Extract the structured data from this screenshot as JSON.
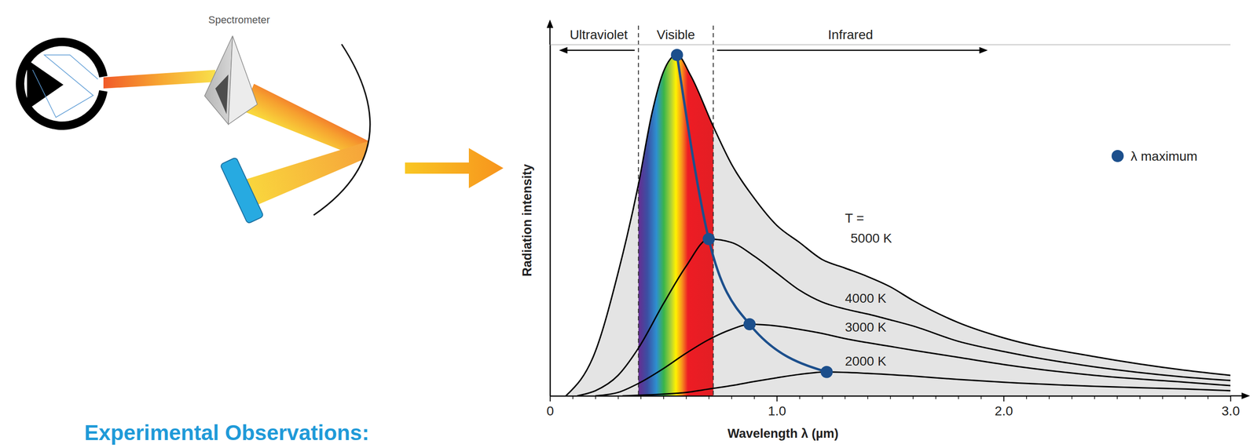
{
  "heading": "Experimental Observations:",
  "diagram": {
    "label": "Spectrometer"
  },
  "chart_data": {
    "type": "line",
    "xlabel": "Wavelength λ (µm)",
    "ylabel": "Radiation intensity",
    "xlim": [
      0,
      3
    ],
    "xticks": [
      0,
      {
        "value": 1,
        "label": "1.0"
      },
      {
        "value": 2,
        "label": "2.0"
      },
      {
        "value": 3,
        "label": "3.0"
      }
    ],
    "xticks_minor": [
      0.1,
      0.2,
      0.3,
      0.4,
      0.5,
      0.6,
      0.7,
      0.8,
      0.9,
      1.1,
      1.2,
      1.3,
      1.4,
      1.5,
      1.6,
      1.7,
      1.8,
      1.9,
      2.1,
      2.2,
      2.3,
      2.4,
      2.5,
      2.6,
      2.7,
      2.8,
      2.9
    ],
    "ylim": [
      0,
      103
    ],
    "tick_labels": "x",
    "legend": "right",
    "regions": [
      {
        "label": "Ultraviolet",
        "from": 0.04,
        "to": 0.39
      },
      {
        "label": "Visible",
        "from": 0.39,
        "to": 0.72
      },
      {
        "label": "Infrared",
        "from": 0.72,
        "to": 1.93
      }
    ],
    "annotations": [
      "T ="
    ],
    "series": [
      {
        "name": "5000 K",
        "type": "area",
        "color": "#000000",
        "x": [
          0.07,
          0.2,
          0.3,
          0.39,
          0.45,
          0.5,
          0.56,
          0.62,
          0.72,
          0.8,
          0.9,
          1.0,
          1.1,
          1.2,
          1.3,
          1.4,
          1.5,
          1.6,
          1.8,
          2.0,
          2.4,
          2.8,
          3.0
        ],
        "values": [
          0,
          13,
          36,
          62,
          83,
          95,
          100,
          94,
          79,
          68,
          58,
          50,
          45,
          40,
          37.5,
          35,
          32,
          28,
          21.5,
          17,
          11.5,
          7.5,
          6
        ]
      },
      {
        "name": "4000 K",
        "type": "line",
        "color": "#000000",
        "x": [
          0.12,
          0.2,
          0.3,
          0.39,
          0.5,
          0.6,
          0.7,
          0.8,
          0.9,
          1.0,
          1.1,
          1.2,
          1.3,
          1.4,
          1.5,
          1.6,
          1.8,
          2.0,
          2.4,
          2.8,
          3.0
        ],
        "values": [
          0,
          1.5,
          6,
          14,
          27,
          38,
          46,
          45,
          41,
          36,
          31,
          27.5,
          25.5,
          24,
          22.3,
          20.5,
          16,
          13,
          8.5,
          5.5,
          4.5
        ]
      },
      {
        "name": "3000 K",
        "type": "line",
        "color": "#000000",
        "x": [
          0.2,
          0.3,
          0.4,
          0.5,
          0.6,
          0.7,
          0.8,
          0.88,
          1.0,
          1.1,
          1.2,
          1.3,
          1.4,
          1.5,
          1.6,
          1.8,
          2.0,
          2.4,
          2.8,
          3.0
        ],
        "values": [
          0,
          1,
          4,
          8,
          12.5,
          16.5,
          19.5,
          21,
          20.5,
          19.5,
          18.3,
          16.8,
          15.6,
          14.5,
          13.4,
          11.3,
          9.2,
          6,
          4,
          3
        ]
      },
      {
        "name": "2000 K",
        "type": "line",
        "color": "#000000",
        "x": [
          0.32,
          0.5,
          0.6,
          0.7,
          0.8,
          0.9,
          1.0,
          1.1,
          1.22,
          1.4,
          1.6,
          1.8,
          2.0,
          2.4,
          2.8,
          3.0
        ],
        "values": [
          0,
          0.5,
          1,
          2,
          3,
          4.2,
          5.3,
          6.3,
          7,
          6.6,
          5.8,
          4.8,
          4,
          2.8,
          2,
          1.5
        ]
      },
      {
        "name": "λ maximum",
        "type": "line",
        "color": "#1c4f8c",
        "marker": "circle",
        "x": [
          0.56,
          0.7,
          0.88,
          1.22
        ],
        "values": [
          100,
          46,
          21,
          7
        ]
      }
    ]
  }
}
